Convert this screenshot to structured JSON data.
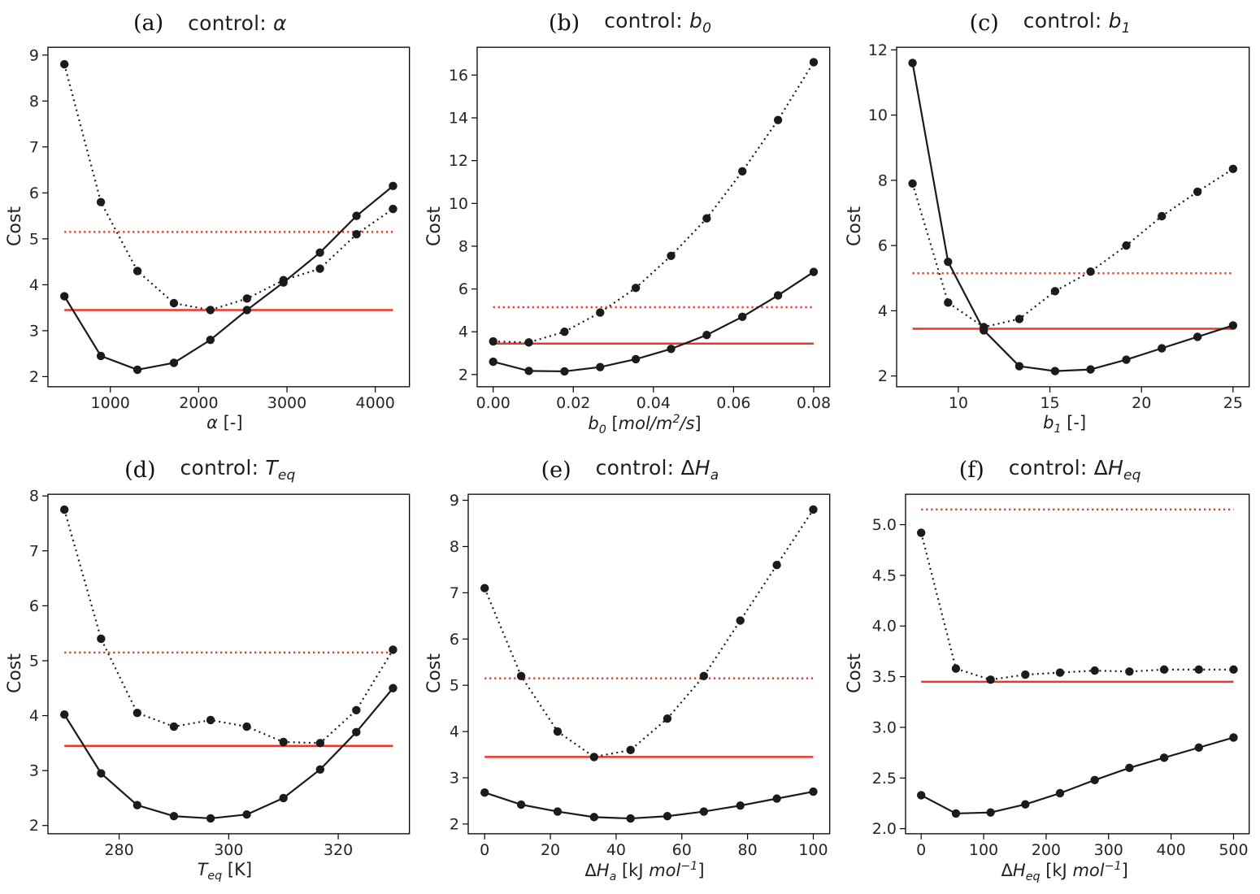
{
  "figure": {
    "background": "#ffffff",
    "colors": {
      "black": "#1b1b1b",
      "red": "#e8372c",
      "axis": "#000000",
      "text": "#262626"
    }
  },
  "chart_data": [
    {
      "id": "a",
      "type": "line",
      "panel_label": "(a)",
      "title": [
        {
          "t": "control: "
        },
        {
          "t": "α",
          "i": true
        }
      ],
      "xlabel": [
        {
          "t": "α",
          "i": true
        },
        {
          "t": " [-]"
        }
      ],
      "ylabel": "Cost",
      "xlim": [
        294,
        4386
      ],
      "ylim": [
        1.78,
        9.17
      ],
      "xticks": [
        1000,
        2000,
        3000,
        4000
      ],
      "xtick_labels": [
        "1000",
        "2000",
        "3000",
        "4000"
      ],
      "yticks": [
        2,
        3,
        4,
        5,
        6,
        7,
        8,
        9
      ],
      "ytick_labels": [
        "2",
        "3",
        "4",
        "5",
        "6",
        "7",
        "8",
        "9"
      ],
      "x": [
        480,
        893,
        1307,
        1720,
        2133,
        2547,
        2960,
        3373,
        3787,
        4200
      ],
      "series": [
        {
          "name": "updated-model-solid",
          "style": "solid",
          "color": "black",
          "values": [
            3.75,
            2.45,
            2.15,
            2.3,
            2.8,
            3.45,
            4.05,
            4.7,
            5.5,
            6.15
          ]
        },
        {
          "name": "initial-model-dotted",
          "style": "dotted",
          "color": "black",
          "values": [
            8.8,
            5.8,
            4.3,
            3.6,
            3.45,
            3.7,
            4.1,
            4.35,
            5.1,
            5.65
          ]
        }
      ],
      "hlines": [
        {
          "y": 3.45,
          "style": "solid",
          "color": "red"
        },
        {
          "y": 5.15,
          "style": "dotted",
          "color": "red"
        }
      ]
    },
    {
      "id": "b",
      "type": "line",
      "panel_label": "(b)",
      "title": [
        {
          "t": "control: "
        },
        {
          "t": "b",
          "i": true
        },
        {
          "t": "0",
          "sub": true,
          "i": true
        }
      ],
      "xlabel": [
        {
          "t": "b",
          "i": true
        },
        {
          "t": "0",
          "sub": true,
          "i": true
        },
        {
          "t": " [",
          "i": false
        },
        {
          "t": "mol/m",
          "i": true
        },
        {
          "t": "2",
          "sup": true,
          "i": true
        },
        {
          "t": "/s",
          "i": true
        },
        {
          "t": "]"
        }
      ],
      "ylabel": "Cost",
      "xlim": [
        -0.004,
        0.084
      ],
      "ylim": [
        1.43,
        17.3
      ],
      "xticks": [
        0.0,
        0.02,
        0.04,
        0.06,
        0.08
      ],
      "xtick_labels": [
        "0.00",
        "0.02",
        "0.04",
        "0.06",
        "0.08"
      ],
      "yticks": [
        2,
        4,
        6,
        8,
        10,
        12,
        14,
        16
      ],
      "ytick_labels": [
        "2",
        "4",
        "6",
        "8",
        "10",
        "12",
        "14",
        "16"
      ],
      "x": [
        0,
        0.0089,
        0.0178,
        0.0267,
        0.0356,
        0.0444,
        0.0533,
        0.0622,
        0.0711,
        0.08
      ],
      "series": [
        {
          "name": "updated-model-solid",
          "style": "solid",
          "color": "black",
          "values": [
            2.6,
            2.17,
            2.15,
            2.35,
            2.72,
            3.2,
            3.85,
            4.7,
            5.7,
            6.8
          ]
        },
        {
          "name": "initial-model-dotted",
          "style": "dotted",
          "color": "black",
          "values": [
            3.55,
            3.5,
            4.0,
            4.9,
            6.05,
            7.55,
            9.3,
            11.5,
            13.9,
            16.6
          ]
        }
      ],
      "hlines": [
        {
          "y": 3.45,
          "style": "solid",
          "color": "red"
        },
        {
          "y": 5.15,
          "style": "dotted",
          "color": "red"
        }
      ]
    },
    {
      "id": "c",
      "type": "line",
      "panel_label": "(c)",
      "title": [
        {
          "t": "control: "
        },
        {
          "t": "b",
          "i": true
        },
        {
          "t": "1",
          "sub": true,
          "i": true
        }
      ],
      "xlabel": [
        {
          "t": "b",
          "i": true
        },
        {
          "t": "1",
          "sub": true,
          "i": true
        },
        {
          "t": " [-]"
        }
      ],
      "ylabel": "Cost",
      "xlim": [
        6.63,
        25.88
      ],
      "ylim": [
        1.67,
        12.08
      ],
      "xticks": [
        10,
        15,
        20,
        25
      ],
      "xtick_labels": [
        "10",
        "15",
        "20",
        "25"
      ],
      "yticks": [
        2,
        4,
        6,
        8,
        10,
        12
      ],
      "ytick_labels": [
        "2",
        "4",
        "6",
        "8",
        "10",
        "12"
      ],
      "x": [
        7.5,
        9.44,
        11.39,
        13.33,
        15.28,
        17.22,
        19.17,
        21.11,
        23.06,
        25
      ],
      "series": [
        {
          "name": "updated-model-solid",
          "style": "solid",
          "color": "black",
          "values": [
            11.6,
            5.5,
            3.4,
            2.3,
            2.15,
            2.2,
            2.5,
            2.85,
            3.2,
            3.55
          ]
        },
        {
          "name": "initial-model-dotted",
          "style": "dotted",
          "color": "black",
          "values": [
            7.9,
            4.25,
            3.5,
            3.75,
            4.6,
            5.2,
            6.0,
            6.9,
            7.65,
            8.35
          ]
        }
      ],
      "hlines": [
        {
          "y": 3.45,
          "style": "solid",
          "color": "red"
        },
        {
          "y": 5.15,
          "style": "dotted",
          "color": "red"
        }
      ]
    },
    {
      "id": "d",
      "type": "line",
      "panel_label": "(d)",
      "title": [
        {
          "t": "control: "
        },
        {
          "t": "T",
          "i": true
        },
        {
          "t": "eq",
          "sub": true,
          "i": true
        }
      ],
      "xlabel": [
        {
          "t": "T",
          "i": true
        },
        {
          "t": "eq",
          "sub": true,
          "i": true
        },
        {
          "t": " [K]"
        }
      ],
      "ylabel": "Cost",
      "xlim": [
        267,
        333
      ],
      "ylim": [
        1.85,
        8.03
      ],
      "xticks": [
        280,
        300,
        320
      ],
      "xtick_labels": [
        "280",
        "300",
        "320"
      ],
      "yticks": [
        2,
        3,
        4,
        5,
        6,
        7,
        8
      ],
      "ytick_labels": [
        "2",
        "3",
        "4",
        "5",
        "6",
        "7",
        "8"
      ],
      "x": [
        270,
        276.7,
        283.3,
        290,
        296.7,
        303.3,
        310,
        316.7,
        323.3,
        330
      ],
      "series": [
        {
          "name": "updated-model-solid",
          "style": "solid",
          "color": "black",
          "values": [
            4.02,
            2.95,
            2.37,
            2.17,
            2.13,
            2.2,
            2.5,
            3.02,
            3.7,
            4.5
          ]
        },
        {
          "name": "initial-model-dotted",
          "style": "dotted",
          "color": "black",
          "values": [
            7.75,
            5.4,
            4.05,
            3.8,
            3.92,
            3.8,
            3.52,
            3.5,
            4.1,
            5.2
          ]
        }
      ],
      "hlines": [
        {
          "y": 3.45,
          "style": "solid",
          "color": "red"
        },
        {
          "y": 5.15,
          "style": "dotted",
          "color": "red"
        }
      ]
    },
    {
      "id": "e",
      "type": "line",
      "panel_label": "(e)",
      "title": [
        {
          "t": "control: "
        },
        {
          "t": "Δ"
        },
        {
          "t": "H",
          "i": true
        },
        {
          "t": "a",
          "sub": true,
          "i": true
        }
      ],
      "xlabel": [
        {
          "t": "Δ"
        },
        {
          "t": "H",
          "i": true
        },
        {
          "t": "a",
          "sub": true,
          "i": true
        },
        {
          "t": " [kJ "
        },
        {
          "t": "mol",
          "i": true
        },
        {
          "t": "−1",
          "sup": true,
          "i": true
        },
        {
          "t": "]"
        }
      ],
      "ylabel": "Cost",
      "xlim": [
        -5,
        105
      ],
      "ylim": [
        1.79,
        9.13
      ],
      "xticks": [
        0,
        20,
        40,
        60,
        80,
        100
      ],
      "xtick_labels": [
        "0",
        "20",
        "40",
        "60",
        "80",
        "100"
      ],
      "yticks": [
        2,
        3,
        4,
        5,
        6,
        7,
        8,
        9
      ],
      "ytick_labels": [
        "2",
        "3",
        "4",
        "5",
        "6",
        "7",
        "8",
        "9"
      ],
      "x": [
        0,
        11.1,
        22.2,
        33.3,
        44.4,
        55.6,
        66.7,
        77.8,
        88.9,
        100
      ],
      "series": [
        {
          "name": "updated-model-solid",
          "style": "solid",
          "color": "black",
          "values": [
            2.68,
            2.42,
            2.27,
            2.15,
            2.12,
            2.17,
            2.27,
            2.4,
            2.55,
            2.7
          ]
        },
        {
          "name": "initial-model-dotted",
          "style": "dotted",
          "color": "black",
          "values": [
            7.1,
            5.2,
            4.0,
            3.45,
            3.6,
            4.28,
            5.2,
            6.4,
            7.6,
            8.8
          ]
        }
      ],
      "hlines": [
        {
          "y": 3.45,
          "style": "solid",
          "color": "red"
        },
        {
          "y": 5.15,
          "style": "dotted",
          "color": "red"
        }
      ]
    },
    {
      "id": "f",
      "type": "line",
      "panel_label": "(f)",
      "title": [
        {
          "t": "control: "
        },
        {
          "t": "Δ"
        },
        {
          "t": "H",
          "i": true
        },
        {
          "t": "eq",
          "sub": true,
          "i": true
        }
      ],
      "xlabel": [
        {
          "t": "Δ"
        },
        {
          "t": "H",
          "i": true
        },
        {
          "t": "eq",
          "sub": true,
          "i": true
        },
        {
          "t": " [kJ "
        },
        {
          "t": "mol",
          "i": true
        },
        {
          "t": "−1",
          "sup": true,
          "i": true
        },
        {
          "t": "]"
        }
      ],
      "ylabel": "Cost",
      "xlim": [
        -25,
        525
      ],
      "ylim": [
        1.95,
        5.3
      ],
      "xticks": [
        0,
        100,
        200,
        300,
        400,
        500
      ],
      "xtick_labels": [
        "0",
        "100",
        "200",
        "300",
        "400",
        "500"
      ],
      "yticks": [
        2.0,
        2.5,
        3.0,
        3.5,
        4.0,
        4.5,
        5.0
      ],
      "ytick_labels": [
        "2.0",
        "2.5",
        "3.0",
        "3.5",
        "4.0",
        "4.5",
        "5.0"
      ],
      "x": [
        0,
        55.6,
        111.1,
        166.7,
        222.2,
        277.8,
        333.3,
        388.9,
        444.4,
        500
      ],
      "series": [
        {
          "name": "updated-model-solid",
          "style": "solid",
          "color": "black",
          "values": [
            2.33,
            2.15,
            2.16,
            2.24,
            2.35,
            2.48,
            2.6,
            2.7,
            2.8,
            2.9
          ]
        },
        {
          "name": "initial-model-dotted",
          "style": "dotted",
          "color": "black",
          "values": [
            4.92,
            3.58,
            3.47,
            3.52,
            3.54,
            3.56,
            3.55,
            3.57,
            3.57,
            3.57
          ]
        }
      ],
      "hlines": [
        {
          "y": 3.45,
          "style": "solid",
          "color": "red"
        },
        {
          "y": 5.15,
          "style": "dotted",
          "color": "red"
        }
      ]
    }
  ]
}
